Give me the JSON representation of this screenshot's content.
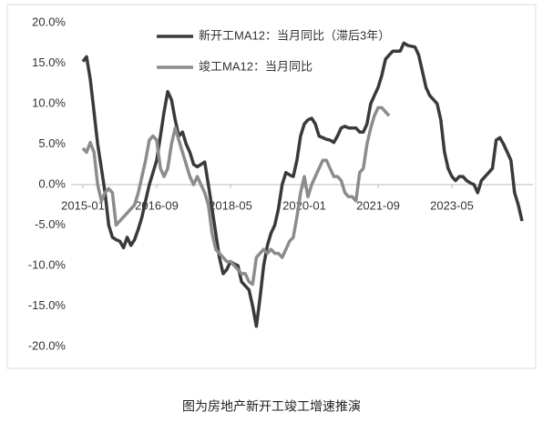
{
  "chart_data": {
    "type": "line",
    "caption": "图为房地产新开工竣工增速推演",
    "categories": [
      "2015-01",
      null,
      null,
      null,
      null,
      null,
      null,
      null,
      null,
      null,
      null,
      null,
      null,
      null,
      null,
      null,
      null,
      null,
      null,
      null,
      "2016-09",
      null,
      null,
      null,
      null,
      null,
      null,
      null,
      null,
      null,
      null,
      null,
      null,
      null,
      null,
      null,
      null,
      null,
      null,
      null,
      "2018-05",
      null,
      null,
      null,
      null,
      null,
      null,
      null,
      null,
      null,
      null,
      null,
      null,
      null,
      null,
      null,
      null,
      null,
      null,
      null,
      "2020-01",
      null,
      null,
      null,
      null,
      null,
      null,
      null,
      null,
      null,
      null,
      null,
      null,
      null,
      null,
      null,
      null,
      null,
      null,
      null,
      "2021-09",
      null,
      null,
      null,
      null,
      null,
      null,
      null,
      null,
      null,
      null,
      null,
      null,
      null,
      null,
      null,
      null,
      null,
      null,
      null,
      "2023-05",
      null,
      null,
      null,
      null,
      null,
      null,
      null,
      null,
      null,
      null,
      null,
      null,
      null,
      null,
      null,
      null,
      null,
      null,
      null
    ],
    "series": [
      {
        "name": "新开工MA12：当月同比（滞后3年）",
        "color": "#3a3a3a",
        "values": [
          15.2,
          15.8,
          13,
          9,
          5,
          2,
          -1,
          -5,
          -6.5,
          -6.8,
          -7,
          -7.8,
          -6.5,
          -7.5,
          -6.8,
          -5.5,
          -4,
          -2,
          0,
          1.5,
          3,
          6,
          9,
          11.5,
          10.5,
          8,
          6,
          6.5,
          5,
          4,
          2.5,
          2.2,
          2.5,
          2.8,
          0,
          -3,
          -6,
          -9,
          -11,
          -10.5,
          -9.5,
          -9.8,
          -10,
          -12,
          -12.5,
          -13,
          -15,
          -17.5,
          -14,
          -10,
          -7.5,
          -6,
          -5,
          -3,
          0,
          1.5,
          1.2,
          1,
          3,
          6,
          7.5,
          8,
          8.2,
          7.5,
          6,
          5.8,
          5.6,
          5.5,
          5.2,
          6,
          7,
          7.2,
          7,
          7,
          7,
          6.5,
          6.5,
          7.5,
          10,
          11,
          12,
          13.5,
          15.5,
          16,
          16.5,
          16.5,
          16.5,
          17.5,
          17.2,
          17.1,
          17,
          16,
          14,
          12,
          11,
          10.5,
          10,
          8,
          4,
          2,
          1,
          0.5,
          1,
          1,
          0.5,
          0.2,
          0,
          -1,
          0.5,
          1,
          1.5,
          2,
          5.5,
          5.8,
          5,
          4,
          3,
          -1,
          -2.5,
          -4.5
        ]
      },
      {
        "name": "竣工MA12：当月同比",
        "color": "#8c8c8c",
        "values": [
          4.5,
          4,
          5.2,
          4,
          0,
          -2,
          -1,
          -0.5,
          -1,
          -5,
          -4.5,
          -4,
          -3.5,
          -3,
          -2.5,
          -1,
          1,
          3,
          5.5,
          6,
          5.5,
          2,
          1,
          2,
          5,
          7,
          5.5,
          4,
          2.5,
          1,
          0,
          1,
          0,
          -1,
          -2.5,
          -6,
          -8,
          -8.5,
          -9,
          -9.5,
          -9.5,
          -10,
          -10.5,
          -11,
          -11,
          -12,
          -12.3,
          -9,
          -8.5,
          -8,
          -8.5,
          -8,
          -8.5,
          -8.5,
          -9,
          -8,
          -7,
          -6.5,
          -4,
          -1,
          1,
          -1.5,
          0,
          1,
          2,
          3,
          3,
          2,
          1,
          1,
          0.5,
          -1,
          -1.5,
          -1.5,
          -2,
          1.5,
          2,
          5,
          7,
          8.5,
          9.5,
          9.5,
          9,
          8.5,
          null,
          null,
          null,
          null,
          null,
          null,
          null,
          null,
          null,
          null,
          null,
          null,
          null,
          null,
          null,
          null,
          null,
          null,
          null,
          null,
          null,
          null,
          null,
          null,
          null,
          null,
          null,
          null,
          null,
          null,
          null,
          null,
          null,
          null,
          null,
          null
        ]
      }
    ],
    "ylim": [
      -20,
      20
    ],
    "yticks": [
      {
        "value": 20,
        "label": "20.0%"
      },
      {
        "value": 15,
        "label": "15.0%"
      },
      {
        "value": 10,
        "label": "10.0%"
      },
      {
        "value": 5,
        "label": "5.0%"
      },
      {
        "value": 0,
        "label": "0.0%"
      },
      {
        "value": -5,
        "label": "-5.0%"
      },
      {
        "value": -10,
        "label": "-10.0%"
      },
      {
        "value": -15,
        "label": "-15.0%"
      },
      {
        "value": -20,
        "label": "-20.0%"
      }
    ],
    "grid": false,
    "legend": "top"
  }
}
